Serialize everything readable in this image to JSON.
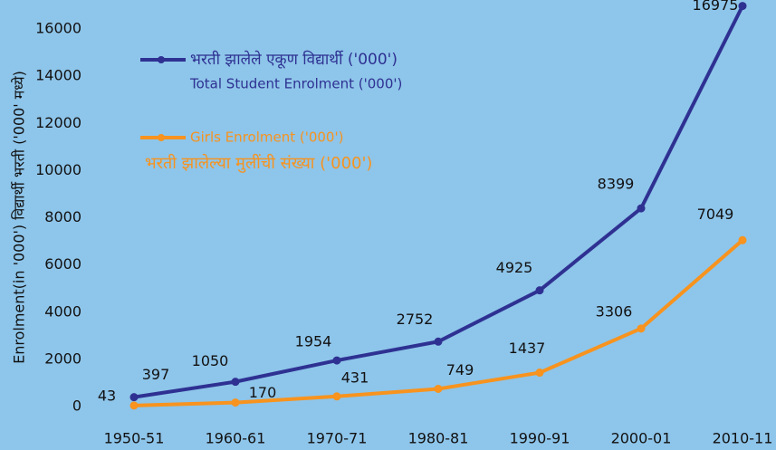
{
  "chart_data": {
    "type": "line",
    "y_label": "Enrolment(in '000') विद्यार्थी भरती ('000' मध्ये)",
    "categories": [
      "1950-51",
      "1960-61",
      "1970-71",
      "1980-81",
      "1990-91",
      "2000-01",
      "2010-11"
    ],
    "series": [
      {
        "name": "भरती झालेले एकूण विद्यार्थी ('000')",
        "name_en": "Total Student Enrolment ('000')",
        "color": "#2e3192",
        "values": [
          397,
          1050,
          1954,
          2752,
          4925,
          8399,
          16975
        ]
      },
      {
        "name": "Girls Enrolment ('000')",
        "name_marathi": "भरती झालेल्या मुलींची संख्या ('000')",
        "color": "#f7931e",
        "values": [
          43,
          170,
          431,
          749,
          1437,
          3306,
          7049
        ]
      }
    ],
    "ylim": [
      0,
      16000
    ],
    "yticks": [
      0,
      2000,
      4000,
      6000,
      8000,
      10000,
      12000,
      14000,
      16000
    ],
    "grid": false
  }
}
